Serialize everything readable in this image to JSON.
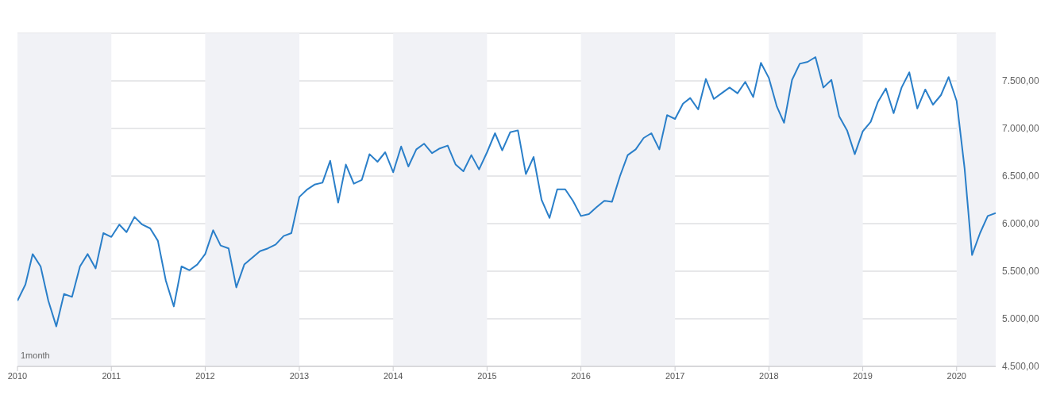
{
  "chart_data": {
    "type": "line",
    "annotations": [
      "1month"
    ],
    "x": [
      "2010-01",
      "2010-02",
      "2010-03",
      "2010-04",
      "2010-05",
      "2010-06",
      "2010-07",
      "2010-08",
      "2010-09",
      "2010-10",
      "2010-11",
      "2010-12",
      "2011-01",
      "2011-02",
      "2011-03",
      "2011-04",
      "2011-05",
      "2011-06",
      "2011-07",
      "2011-08",
      "2011-09",
      "2011-10",
      "2011-11",
      "2011-12",
      "2012-01",
      "2012-02",
      "2012-03",
      "2012-04",
      "2012-05",
      "2012-06",
      "2012-07",
      "2012-08",
      "2012-09",
      "2012-10",
      "2012-11",
      "2012-12",
      "2013-01",
      "2013-02",
      "2013-03",
      "2013-04",
      "2013-05",
      "2013-06",
      "2013-07",
      "2013-08",
      "2013-09",
      "2013-10",
      "2013-11",
      "2013-12",
      "2014-01",
      "2014-02",
      "2014-03",
      "2014-04",
      "2014-05",
      "2014-06",
      "2014-07",
      "2014-08",
      "2014-09",
      "2014-10",
      "2014-11",
      "2014-12",
      "2015-01",
      "2015-02",
      "2015-03",
      "2015-04",
      "2015-05",
      "2015-06",
      "2015-07",
      "2015-08",
      "2015-09",
      "2015-10",
      "2015-11",
      "2015-12",
      "2016-01",
      "2016-02",
      "2016-03",
      "2016-04",
      "2016-05",
      "2016-06",
      "2016-07",
      "2016-08",
      "2016-09",
      "2016-10",
      "2016-11",
      "2016-12",
      "2017-01",
      "2017-02",
      "2017-03",
      "2017-04",
      "2017-05",
      "2017-06",
      "2017-07",
      "2017-08",
      "2017-09",
      "2017-10",
      "2017-11",
      "2017-12",
      "2018-01",
      "2018-02",
      "2018-03",
      "2018-04",
      "2018-05",
      "2018-06",
      "2018-07",
      "2018-08",
      "2018-09",
      "2018-10",
      "2018-11",
      "2018-12",
      "2019-01",
      "2019-02",
      "2019-03",
      "2019-04",
      "2019-05",
      "2019-06",
      "2019-07",
      "2019-08",
      "2019-09",
      "2019-10",
      "2019-11",
      "2019-12",
      "2020-01",
      "2020-02",
      "2020-03",
      "2020-04",
      "2020-05",
      "2020-06"
    ],
    "series": [
      {
        "color": "#2a7fc9",
        "values": [
          5190,
          5360,
          5680,
          5550,
          5190,
          4920,
          5260,
          5230,
          5550,
          5680,
          5530,
          5900,
          5860,
          5990,
          5910,
          6070,
          5990,
          5950,
          5820,
          5400,
          5130,
          5550,
          5510,
          5570,
          5680,
          5930,
          5770,
          5740,
          5330,
          5570,
          5640,
          5710,
          5740,
          5780,
          5870,
          5900,
          6280,
          6360,
          6410,
          6430,
          6660,
          6220,
          6620,
          6420,
          6460,
          6730,
          6650,
          6750,
          6540,
          6810,
          6600,
          6780,
          6840,
          6740,
          6790,
          6820,
          6620,
          6550,
          6720,
          6570,
          6750,
          6950,
          6770,
          6960,
          6980,
          6520,
          6700,
          6250,
          6060,
          6360,
          6360,
          6240,
          6080,
          6100,
          6170,
          6240,
          6230,
          6500,
          6720,
          6780,
          6900,
          6950,
          6780,
          7140,
          7100,
          7260,
          7320,
          7200,
          7520,
          7310,
          7370,
          7430,
          7370,
          7490,
          7330,
          7690,
          7530,
          7230,
          7060,
          7510,
          7680,
          7700,
          7750,
          7430,
          7510,
          7130,
          6980,
          6730,
          6970,
          7070,
          7280,
          7420,
          7160,
          7430,
          7590,
          7210,
          7410,
          7250,
          7350,
          7540,
          7290,
          6580,
          5670,
          5900,
          6080,
          6110
        ]
      }
    ],
    "xlim": [
      "2010-01",
      "2020-06"
    ],
    "xticks": [
      "2010",
      "2011",
      "2012",
      "2013",
      "2014",
      "2015",
      "2016",
      "2017",
      "2018",
      "2019",
      "2020"
    ],
    "ylim": [
      4500,
      8000
    ],
    "yticks": [
      {
        "value": 4500,
        "label": "4.500,00"
      },
      {
        "value": 5000,
        "label": "5.000,00"
      },
      {
        "value": 5500,
        "label": "5.500,00"
      },
      {
        "value": 6000,
        "label": "6.000,00"
      },
      {
        "value": 6500,
        "label": "6.500,00"
      },
      {
        "value": 7000,
        "label": "7.000,00"
      },
      {
        "value": 7500,
        "label": "7.500,00"
      },
      {
        "value": 8000,
        "label": null
      }
    ],
    "bands": [
      {
        "axis": "x",
        "from": "2010",
        "to": "2011",
        "color": "#f1f2f6"
      },
      {
        "axis": "x",
        "from": "2012",
        "to": "2013",
        "color": "#f1f2f6"
      },
      {
        "axis": "x",
        "from": "2014",
        "to": "2015",
        "color": "#f1f2f6"
      },
      {
        "axis": "x",
        "from": "2016",
        "to": "2017",
        "color": "#f1f2f6"
      },
      {
        "axis": "x",
        "from": "2018",
        "to": "2019",
        "color": "#f1f2f6"
      },
      {
        "axis": "x",
        "from": "2020",
        "to": "2020-06",
        "color": "#f1f2f6"
      }
    ],
    "grid": "y",
    "marker": "none",
    "line_style": "solid"
  }
}
